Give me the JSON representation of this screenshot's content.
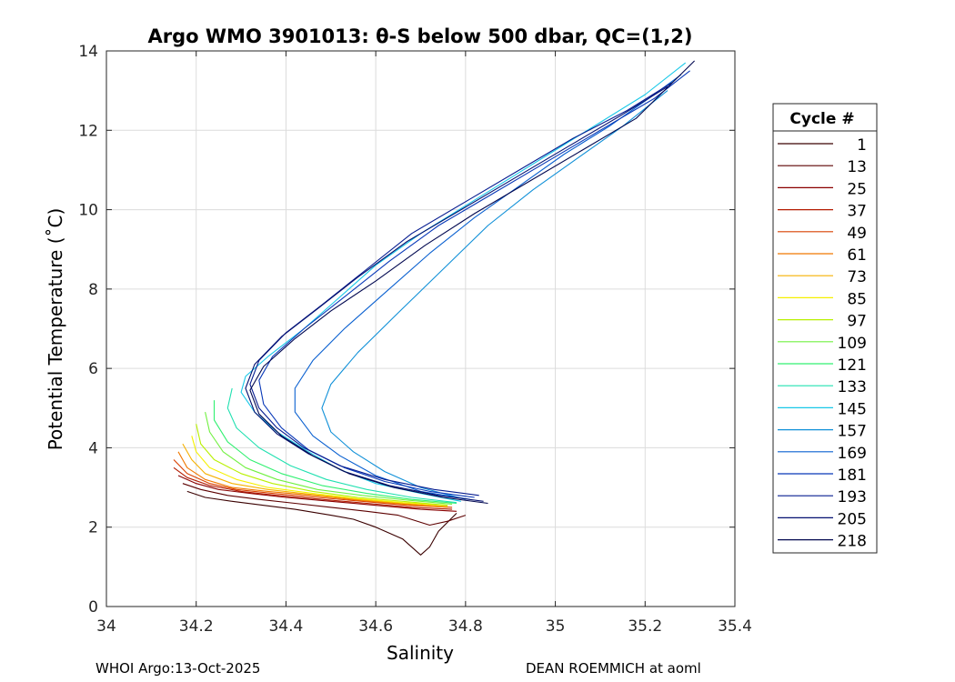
{
  "chart_data": {
    "type": "line",
    "title": "Argo WMO 3901013: θ-S below 500 dbar,  QC=(1,2)",
    "xlabel": "Salinity",
    "ylabel": "Potential Temperature (˚C)",
    "xlim": [
      34.0,
      35.4
    ],
    "ylim": [
      0,
      14
    ],
    "xticks": [
      34,
      34.2,
      34.4,
      34.6,
      34.8,
      35,
      35.2,
      35.4
    ],
    "yticks": [
      0,
      2,
      4,
      6,
      8,
      10,
      12,
      14
    ],
    "grid": true,
    "legend": {
      "title": "Cycle #",
      "placement": "outside-right",
      "entries": [
        {
          "name": "1",
          "color": "#3a0000"
        },
        {
          "name": "13",
          "color": "#5c0000"
        },
        {
          "name": "25",
          "color": "#8a0000"
        },
        {
          "name": "37",
          "color": "#b31a00"
        },
        {
          "name": "49",
          "color": "#d94000"
        },
        {
          "name": "61",
          "color": "#f07800"
        },
        {
          "name": "73",
          "color": "#f5b000"
        },
        {
          "name": "85",
          "color": "#f5f000"
        },
        {
          "name": "97",
          "color": "#b8f000"
        },
        {
          "name": "109",
          "color": "#70f040"
        },
        {
          "name": "121",
          "color": "#30f070"
        },
        {
          "name": "133",
          "color": "#20e0b0"
        },
        {
          "name": "145",
          "color": "#18c8e8"
        },
        {
          "name": "157",
          "color": "#1090d8"
        },
        {
          "name": "169",
          "color": "#0a60d0"
        },
        {
          "name": "181",
          "color": "#0838b8"
        },
        {
          "name": "193",
          "color": "#061c90"
        },
        {
          "name": "205",
          "color": "#041070"
        },
        {
          "name": "218",
          "color": "#020850"
        }
      ]
    },
    "series": [
      {
        "name": "1",
        "color": "#3a0000",
        "x": [
          34.78,
          34.74,
          34.72,
          34.7,
          34.66,
          34.6,
          34.55,
          34.5,
          34.42,
          34.35,
          34.28,
          34.22,
          34.18
        ],
        "y": [
          2.35,
          1.9,
          1.5,
          1.3,
          1.7,
          2.0,
          2.2,
          2.3,
          2.45,
          2.55,
          2.65,
          2.75,
          2.9
        ]
      },
      {
        "name": "13",
        "color": "#5c0000",
        "x": [
          34.8,
          34.76,
          34.72,
          34.65,
          34.58,
          34.5,
          34.42,
          34.34,
          34.27,
          34.21,
          34.17
        ],
        "y": [
          2.3,
          2.15,
          2.05,
          2.3,
          2.4,
          2.5,
          2.6,
          2.7,
          2.8,
          2.95,
          3.1
        ]
      },
      {
        "name": "25",
        "color": "#8a0000",
        "x": [
          34.78,
          34.7,
          34.6,
          34.5,
          34.4,
          34.32,
          34.25,
          34.2,
          34.16
        ],
        "y": [
          2.4,
          2.45,
          2.55,
          2.65,
          2.75,
          2.85,
          2.95,
          3.1,
          3.3
        ]
      },
      {
        "name": "37",
        "color": "#b31a00",
        "x": [
          34.77,
          34.68,
          34.58,
          34.48,
          34.38,
          34.3,
          34.23,
          34.18,
          34.15
        ],
        "y": [
          2.45,
          2.5,
          2.6,
          2.7,
          2.8,
          2.9,
          3.05,
          3.25,
          3.5
        ]
      },
      {
        "name": "49",
        "color": "#d94000",
        "x": [
          34.77,
          34.67,
          34.57,
          34.47,
          34.37,
          34.29,
          34.23,
          34.18,
          34.15
        ],
        "y": [
          2.5,
          2.55,
          2.65,
          2.75,
          2.85,
          2.95,
          3.1,
          3.35,
          3.7
        ]
      },
      {
        "name": "61",
        "color": "#f07800",
        "x": [
          34.76,
          34.66,
          34.56,
          34.46,
          34.36,
          34.28,
          34.22,
          34.18,
          34.16
        ],
        "y": [
          2.5,
          2.58,
          2.68,
          2.8,
          2.9,
          3.0,
          3.2,
          3.5,
          3.9
        ]
      },
      {
        "name": "73",
        "color": "#f5b000",
        "x": [
          34.76,
          34.66,
          34.56,
          34.46,
          34.36,
          34.28,
          34.22,
          34.19,
          34.17
        ],
        "y": [
          2.52,
          2.6,
          2.7,
          2.82,
          2.95,
          3.1,
          3.35,
          3.7,
          4.1
        ]
      },
      {
        "name": "85",
        "color": "#f5f000",
        "x": [
          34.76,
          34.66,
          34.56,
          34.46,
          34.36,
          34.29,
          34.23,
          34.2,
          34.19
        ],
        "y": [
          2.55,
          2.62,
          2.72,
          2.85,
          3.0,
          3.2,
          3.5,
          3.9,
          4.3
        ]
      },
      {
        "name": "97",
        "color": "#b8f000",
        "x": [
          34.76,
          34.66,
          34.56,
          34.46,
          34.37,
          34.3,
          34.24,
          34.21,
          34.2
        ],
        "y": [
          2.55,
          2.65,
          2.75,
          2.9,
          3.1,
          3.35,
          3.7,
          4.1,
          4.6
        ]
      },
      {
        "name": "109",
        "color": "#70f040",
        "x": [
          34.77,
          34.67,
          34.57,
          34.47,
          34.38,
          34.31,
          34.26,
          34.23,
          34.22
        ],
        "y": [
          2.58,
          2.68,
          2.8,
          2.95,
          3.2,
          3.5,
          3.9,
          4.4,
          4.9
        ]
      },
      {
        "name": "121",
        "color": "#30f070",
        "x": [
          34.78,
          34.68,
          34.58,
          34.48,
          34.39,
          34.32,
          34.27,
          34.24,
          34.24
        ],
        "y": [
          2.6,
          2.7,
          2.85,
          3.05,
          3.35,
          3.7,
          4.15,
          4.7,
          5.2
        ]
      },
      {
        "name": "133",
        "color": "#20e0b0",
        "x": [
          34.78,
          34.68,
          34.58,
          34.49,
          34.41,
          34.34,
          34.29,
          34.27,
          34.28
        ],
        "y": [
          2.62,
          2.75,
          2.95,
          3.2,
          3.55,
          4.0,
          4.5,
          5.0,
          5.5
        ]
      },
      {
        "name": "145",
        "color": "#18c8e8",
        "x": [
          34.79,
          34.7,
          34.6,
          34.52,
          34.45,
          34.38,
          34.33,
          34.3,
          34.31,
          34.36,
          34.44,
          34.52,
          34.6,
          34.7,
          34.8,
          34.9,
          35.0,
          35.1,
          35.2,
          35.29
        ],
        "y": [
          2.65,
          2.85,
          3.1,
          3.45,
          3.9,
          4.4,
          4.9,
          5.4,
          5.8,
          6.3,
          7.0,
          7.8,
          8.6,
          9.4,
          10.1,
          10.8,
          11.5,
          12.2,
          12.9,
          13.7
        ]
      },
      {
        "name": "157",
        "color": "#1090d8",
        "x": [
          34.8,
          34.7,
          34.62,
          34.55,
          34.5,
          34.48,
          34.5,
          34.56,
          34.65,
          34.75,
          34.85,
          34.95,
          35.05,
          35.15,
          35.25
        ],
        "y": [
          2.7,
          3.0,
          3.4,
          3.9,
          4.4,
          5.0,
          5.6,
          6.4,
          7.4,
          8.5,
          9.6,
          10.5,
          11.3,
          12.1,
          13.0
        ]
      },
      {
        "name": "169",
        "color": "#0a60d0",
        "x": [
          34.81,
          34.7,
          34.6,
          34.52,
          34.46,
          34.42,
          34.42,
          34.46,
          34.53,
          34.62,
          34.72,
          34.82,
          34.92,
          35.02,
          35.12,
          35.22,
          35.28
        ],
        "y": [
          2.7,
          2.9,
          3.3,
          3.8,
          4.3,
          4.9,
          5.5,
          6.2,
          7.0,
          7.9,
          8.9,
          9.8,
          10.6,
          11.4,
          12.1,
          12.9,
          13.4
        ]
      },
      {
        "name": "181",
        "color": "#0838b8",
        "x": [
          34.82,
          34.72,
          34.62,
          34.53,
          34.45,
          34.39,
          34.35,
          34.34,
          34.37,
          34.44,
          34.53,
          34.63,
          34.74,
          34.86,
          34.98,
          35.1,
          35.22,
          35.3
        ],
        "y": [
          2.75,
          2.9,
          3.15,
          3.5,
          3.95,
          4.5,
          5.1,
          5.7,
          6.3,
          7.0,
          7.8,
          8.7,
          9.6,
          10.4,
          11.2,
          12.0,
          12.8,
          13.5
        ]
      },
      {
        "name": "193",
        "color": "#061c90",
        "x": [
          34.83,
          34.73,
          34.62,
          34.52,
          34.44,
          34.38,
          34.34,
          34.32,
          34.34,
          34.4,
          34.48,
          34.58,
          34.68,
          34.8,
          34.92,
          35.04,
          35.16,
          35.26
        ],
        "y": [
          2.8,
          2.95,
          3.2,
          3.55,
          4.0,
          4.5,
          5.0,
          5.6,
          6.2,
          6.9,
          7.6,
          8.5,
          9.4,
          10.2,
          11.0,
          11.8,
          12.5,
          13.2
        ]
      },
      {
        "name": "205",
        "color": "#041070",
        "x": [
          34.84,
          34.74,
          34.63,
          34.53,
          34.45,
          34.38,
          34.33,
          34.31,
          34.33,
          34.39,
          34.47,
          34.56,
          34.67,
          34.79,
          34.91,
          35.03,
          35.15,
          35.25
        ],
        "y": [
          2.65,
          2.8,
          3.05,
          3.4,
          3.85,
          4.35,
          4.9,
          5.5,
          6.1,
          6.8,
          7.5,
          8.3,
          9.2,
          10.0,
          10.8,
          11.6,
          12.4,
          13.1
        ]
      },
      {
        "name": "218",
        "color": "#020850",
        "x": [
          34.85,
          34.75,
          34.64,
          34.54,
          34.46,
          34.39,
          34.34,
          34.32,
          34.35,
          34.42,
          34.5,
          34.6,
          34.71,
          34.82,
          34.94,
          35.06,
          35.18,
          35.31
        ],
        "y": [
          2.6,
          2.75,
          3.0,
          3.35,
          3.8,
          4.3,
          4.85,
          5.45,
          6.05,
          6.75,
          7.45,
          8.2,
          9.1,
          9.9,
          10.7,
          11.5,
          12.3,
          13.75
        ]
      }
    ]
  },
  "footer": {
    "left": "WHOI Argo:13-Oct-2025",
    "right": "DEAN ROEMMICH at aoml"
  }
}
